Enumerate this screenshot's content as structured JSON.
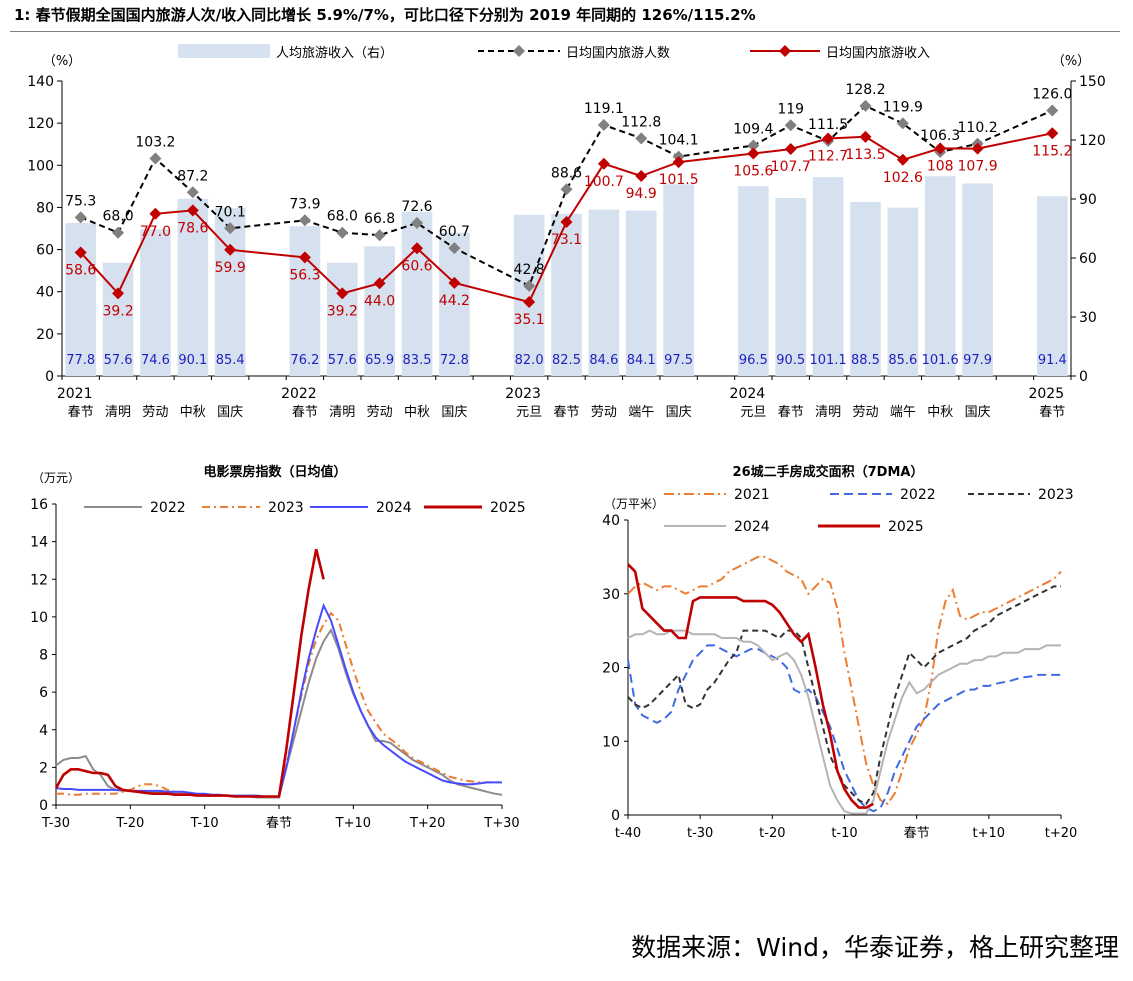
{
  "figure": {
    "title": "1:  春节假期全国国内旅游人次/收入同比增长 5.9%/7%，可比口径下分别为 2019 年同期的 126%/115.2%",
    "source": "数据来源：Wind，华泰证券，格上研究整理"
  },
  "chart_data": [
    {
      "type": "bar",
      "id": "tourism",
      "left_unit": "（%）",
      "right_unit": "（%）",
      "ylim_left": [
        0,
        140
      ],
      "ylim_right": [
        0,
        150
      ],
      "yticks_left": [
        "0",
        "20",
        "40",
        "60",
        "80",
        "100",
        "120",
        "140"
      ],
      "yticks_right": [
        "0",
        "30",
        "60",
        "90",
        "120",
        "150"
      ],
      "legend": [
        "人均旅游收入（右）",
        "日均国内旅游人数",
        "日均国内旅游收入"
      ],
      "years": [
        {
          "label": "2021",
          "index": 0
        },
        {
          "label": "2022",
          "index": 6
        },
        {
          "label": "2023",
          "index": 12
        },
        {
          "label": "2024",
          "index": 18
        },
        {
          "label": "2025",
          "index": 26
        }
      ],
      "categories": [
        "春节",
        "清明",
        "劳动",
        "中秋",
        "国庆",
        "",
        "春节",
        "清明",
        "劳动",
        "中秋",
        "国庆",
        "",
        "元旦",
        "春节",
        "劳动",
        "端午",
        "国庆",
        "",
        "元旦",
        "春节",
        "清明",
        "劳动",
        "端午",
        "中秋",
        "国庆",
        "",
        "春节"
      ],
      "series": [
        {
          "name": "人均旅游收入（右）",
          "kind": "bar",
          "color": "#d6e1f0",
          "values": [
            77.8,
            57.6,
            74.6,
            90.1,
            85.4,
            null,
            76.2,
            57.6,
            65.9,
            83.5,
            72.8,
            null,
            82.0,
            82.5,
            84.6,
            84.1,
            97.5,
            null,
            96.5,
            90.5,
            101.1,
            88.5,
            85.6,
            101.6,
            97.9,
            null,
            91.4
          ],
          "labels": [
            "77.8",
            "57.6",
            "74.6",
            "90.1",
            "85.4",
            "",
            "76.2",
            "57.6",
            "65.9",
            "83.5",
            "72.8",
            "",
            "82.0",
            "82.5",
            "84.6",
            "84.1",
            "97.5",
            "",
            "96.5",
            "90.5",
            "101.1",
            "88.5",
            "85.6",
            "101.6",
            "97.9",
            "",
            "91.4"
          ]
        },
        {
          "name": "日均国内旅游人数",
          "kind": "dashed-line",
          "color": "#000000",
          "marker": "#808080",
          "values": [
            75.3,
            68.0,
            103.2,
            87.2,
            70.1,
            null,
            73.9,
            68.0,
            66.8,
            72.6,
            60.7,
            null,
            42.8,
            88.6,
            119.1,
            112.8,
            104.1,
            null,
            109.4,
            119,
            111.5,
            128.2,
            119.9,
            106.3,
            110.2,
            null,
            126.0
          ],
          "labels": [
            "75.3",
            "68.0",
            "103.2",
            "87.2",
            "70.1",
            "",
            "73.9",
            "68.0",
            "66.8",
            "72.6",
            "60.7",
            "",
            "42.8",
            "88.6",
            "119.1",
            "112.8",
            "104.1",
            "",
            "109.4",
            "119",
            "111.5",
            "128.2",
            "119.9",
            "106.3",
            "110.2",
            "",
            "126.0"
          ]
        },
        {
          "name": "日均国内旅游收入",
          "kind": "line",
          "color": "#c00000",
          "values": [
            58.6,
            39.2,
            77.0,
            78.6,
            59.9,
            null,
            56.3,
            39.2,
            44.0,
            60.6,
            44.2,
            null,
            35.1,
            73.1,
            100.7,
            94.9,
            101.5,
            null,
            105.6,
            107.7,
            112.7,
            113.5,
            102.6,
            108,
            107.9,
            null,
            115.2
          ],
          "labels": [
            "58.6",
            "39.2",
            "77.0",
            "78.6",
            "59.9",
            "",
            "56.3",
            "39.2",
            "44.0",
            "60.6",
            "44.2",
            "",
            "35.1",
            "73.1",
            "100.7",
            "94.9",
            "101.5",
            "",
            "105.6",
            "107.7",
            "112.7",
            "113.5",
            "102.6",
            "108",
            "107.9",
            "",
            "115.2"
          ]
        }
      ]
    },
    {
      "type": "line",
      "id": "movie",
      "title": "电影票房指数（日均值）",
      "unit": "（万元）",
      "ylim": [
        0,
        16
      ],
      "yticks": [
        "0",
        "2",
        "4",
        "6",
        "8",
        "10",
        "12",
        "14",
        "16"
      ],
      "xticks": [
        "T-30",
        "T-20",
        "T-10",
        "春节",
        "T+10",
        "T+20",
        "T+30"
      ],
      "x": [
        -30,
        -29,
        -28,
        -27,
        -26,
        -25,
        -24,
        -23,
        -22,
        -21,
        -20,
        -19,
        -18,
        -17,
        -16,
        -15,
        -14,
        -13,
        -12,
        -11,
        -10,
        -9,
        -8,
        -7,
        -6,
        -5,
        -4,
        -3,
        -2,
        -1,
        0,
        1,
        2,
        3,
        4,
        5,
        6,
        7,
        8,
        9,
        10,
        11,
        12,
        13,
        14,
        15,
        16,
        17,
        18,
        19,
        20,
        21,
        22,
        23,
        24,
        25,
        26,
        27,
        28,
        29,
        30
      ],
      "series": [
        {
          "name": "2022",
          "color": "#8c8c8c",
          "dash": "",
          "values": [
            2.1,
            2.4,
            2.5,
            2.5,
            2.6,
            1.9,
            1.6,
            1.0,
            0.8,
            0.75,
            0.75,
            0.7,
            0.7,
            0.7,
            0.65,
            0.65,
            0.6,
            0.6,
            0.55,
            0.55,
            0.5,
            0.5,
            0.5,
            0.5,
            0.45,
            0.45,
            0.45,
            0.4,
            0.4,
            0.4,
            0.4,
            2.0,
            3.5,
            5.0,
            6.5,
            7.8,
            8.7,
            9.3,
            8.3,
            7.0,
            5.9,
            5.0,
            4.2,
            3.4,
            3.4,
            3.3,
            3.0,
            2.7,
            2.4,
            2.2,
            2.0,
            1.8,
            1.6,
            1.3,
            1.1,
            1.0,
            0.9,
            0.8,
            0.7,
            0.6,
            0.55
          ]
        },
        {
          "name": "2023",
          "color": "#ed7d31",
          "dash": "8,4,2,4",
          "values": [
            0.6,
            0.6,
            0.55,
            0.55,
            0.6,
            0.6,
            0.6,
            0.6,
            0.6,
            0.7,
            0.8,
            1.0,
            1.1,
            1.1,
            1.0,
            0.8,
            0.7,
            0.6,
            0.6,
            0.55,
            0.5,
            0.5,
            0.5,
            0.5,
            0.45,
            0.45,
            0.45,
            0.45,
            0.45,
            0.45,
            0.45,
            2.2,
            4.0,
            5.8,
            7.5,
            8.8,
            9.6,
            10.2,
            9.8,
            8.5,
            7.2,
            6.0,
            5.0,
            4.4,
            3.8,
            3.5,
            3.2,
            2.8,
            2.5,
            2.3,
            2.1,
            1.9,
            1.7,
            1.5,
            1.4,
            1.3,
            1.25,
            1.2,
            1.2,
            1.2,
            1.2
          ]
        },
        {
          "name": "2024",
          "color": "#4a4aff",
          "dash": "",
          "values": [
            0.9,
            0.85,
            0.85,
            0.8,
            0.8,
            0.8,
            0.8,
            0.8,
            0.8,
            0.8,
            0.75,
            0.75,
            0.75,
            0.75,
            0.75,
            0.7,
            0.7,
            0.7,
            0.65,
            0.6,
            0.6,
            0.55,
            0.55,
            0.5,
            0.5,
            0.5,
            0.5,
            0.5,
            0.45,
            0.45,
            0.45,
            2.0,
            4.0,
            6.0,
            7.8,
            9.3,
            10.6,
            9.8,
            8.5,
            7.2,
            6.0,
            5.0,
            4.2,
            3.6,
            3.2,
            2.9,
            2.6,
            2.3,
            2.1,
            1.9,
            1.7,
            1.5,
            1.3,
            1.2,
            1.15,
            1.1,
            1.1,
            1.15,
            1.2,
            1.2,
            1.2
          ]
        },
        {
          "name": "2025",
          "color": "#c00000",
          "dash": "",
          "values": [
            0.9,
            1.6,
            1.9,
            1.9,
            1.8,
            1.7,
            1.7,
            1.6,
            1.0,
            0.8,
            0.75,
            0.7,
            0.65,
            0.6,
            0.6,
            0.6,
            0.55,
            0.55,
            0.55,
            0.5,
            0.5,
            0.5,
            0.5,
            0.5,
            0.45,
            0.45,
            0.45,
            0.45,
            0.45,
            0.45,
            0.45,
            3.0,
            6.0,
            9.0,
            11.5,
            13.6,
            12.0,
            null,
            null,
            null,
            null,
            null,
            null,
            null,
            null,
            null,
            null,
            null,
            null,
            null,
            null,
            null,
            null,
            null,
            null,
            null,
            null,
            null,
            null,
            null,
            null
          ]
        }
      ]
    },
    {
      "type": "line",
      "id": "housing",
      "title": "26城二手房成交面积（7DMA）",
      "unit": "（万平米）",
      "ylim": [
        0,
        40
      ],
      "yticks": [
        "0",
        "10",
        "20",
        "30",
        "40"
      ],
      "xticks": [
        "t-40",
        "t-30",
        "t-20",
        "t-10",
        "春节",
        "t+10",
        "t+20"
      ],
      "x": [
        -40,
        -39,
        -38,
        -37,
        -36,
        -35,
        -34,
        -33,
        -32,
        -31,
        -30,
        -29,
        -28,
        -27,
        -26,
        -25,
        -24,
        -23,
        -22,
        -21,
        -20,
        -19,
        -18,
        -17,
        -16,
        -15,
        -14,
        -13,
        -12,
        -11,
        -10,
        -9,
        -8,
        -7,
        -6,
        -5,
        -4,
        -3,
        -2,
        -1,
        0,
        1,
        2,
        3,
        4,
        5,
        6,
        7,
        8,
        9,
        10,
        11,
        12,
        13,
        14,
        15,
        16,
        17,
        18,
        19,
        20
      ],
      "series": [
        {
          "name": "2021",
          "color": "#ed7d31",
          "dash": "10,4,2,4",
          "values": [
            30,
            31,
            31.5,
            31,
            30.5,
            31,
            31,
            30.5,
            30,
            30.5,
            31,
            31,
            31.5,
            32,
            33,
            33.5,
            34,
            34.5,
            35,
            35,
            34.5,
            34,
            33,
            32.5,
            32,
            30,
            31,
            32,
            31.5,
            28,
            22,
            17,
            12,
            7,
            4,
            2,
            1.5,
            3,
            6,
            9,
            11,
            13,
            18,
            25,
            29,
            30.5,
            27,
            26.5,
            27,
            27.5,
            27.5,
            28,
            28.5,
            29,
            29.5,
            30,
            30.5,
            31,
            31.5,
            32,
            33
          ]
        },
        {
          "name": "2022",
          "color": "#4169e1",
          "dash": "9,5",
          "values": [
            21,
            15,
            13.5,
            13,
            12.5,
            13,
            14,
            17,
            19,
            21,
            22,
            23,
            23,
            22.5,
            22,
            21.5,
            22,
            22.5,
            22.5,
            22,
            21.5,
            21,
            20,
            17,
            16.5,
            17,
            16,
            14,
            12,
            9,
            6,
            4,
            2,
            1,
            0.5,
            1,
            3,
            6,
            8,
            10,
            12,
            13,
            14,
            15,
            15.5,
            16,
            16.5,
            17,
            17,
            17.5,
            17.5,
            17.8,
            18,
            18.2,
            18.5,
            18.7,
            18.8,
            19,
            19,
            19,
            19
          ]
        },
        {
          "name": "2023",
          "color": "#333333",
          "dash": "6,4",
          "values": [
            16,
            15,
            14.5,
            15,
            16,
            17,
            18,
            19,
            15,
            14.5,
            15,
            17,
            18,
            19.5,
            21,
            22,
            25,
            25,
            25,
            25,
            24.5,
            24,
            25,
            25,
            24,
            20,
            16,
            12,
            8,
            6,
            4,
            3,
            2,
            1.5,
            3,
            8,
            12,
            16,
            19,
            22,
            21,
            20,
            21,
            22,
            22.5,
            23,
            23.5,
            24,
            25,
            25.5,
            26,
            27,
            27.5,
            28,
            28.5,
            29,
            29.5,
            30,
            30.5,
            31,
            31
          ]
        },
        {
          "name": "2024",
          "color": "#b4b4b4",
          "dash": "",
          "values": [
            24,
            24.5,
            24.5,
            25,
            24.5,
            24.5,
            25,
            25,
            25,
            24.5,
            24.5,
            24.5,
            24.5,
            24,
            24,
            24,
            23.5,
            23.5,
            23,
            22,
            21,
            21.5,
            22,
            21,
            19,
            16,
            12,
            8,
            4,
            2,
            0.5,
            0.2,
            0.2,
            0.2,
            2,
            6,
            10,
            13,
            16,
            18,
            16.5,
            17,
            18,
            19,
            19.5,
            20,
            20.5,
            20.5,
            21,
            21,
            21.5,
            21.5,
            22,
            22,
            22,
            22.5,
            22.5,
            22.5,
            23,
            23,
            23
          ]
        },
        {
          "name": "2025",
          "color": "#c00000",
          "dash": "",
          "values": [
            34,
            33,
            28,
            27,
            26,
            25,
            25,
            24,
            24,
            29,
            29.5,
            29.5,
            29.5,
            29.5,
            29.5,
            29.5,
            29,
            29,
            29,
            29,
            28.5,
            27.5,
            26,
            24.5,
            23.5,
            24.5,
            20,
            15,
            11,
            6,
            3.5,
            2,
            1,
            1,
            1.5,
            null,
            null,
            null,
            null,
            null,
            null,
            null,
            null,
            null,
            null,
            null,
            null,
            null,
            null,
            null,
            null,
            null,
            null,
            null,
            null,
            null,
            null,
            null,
            null,
            null,
            null
          ]
        }
      ]
    }
  ]
}
